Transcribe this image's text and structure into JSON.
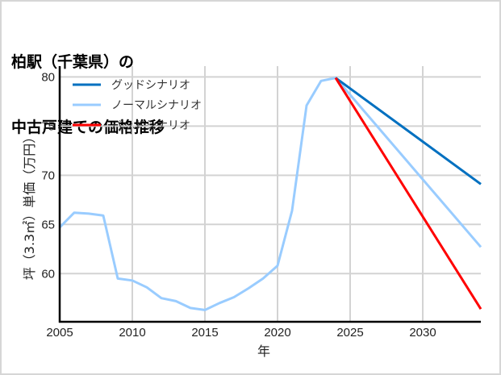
{
  "chart_data": {
    "type": "line",
    "title": "柏駅（千葉県）の\n中古戸建ての価格推移",
    "title_lines": [
      "柏駅（千葉県）の",
      "中古戸建ての価格推移"
    ],
    "xlabel": "年",
    "ylabel": "坪（3.3㎡）単価（万円）",
    "xlim": [
      2005,
      2034
    ],
    "ylim": [
      55.1,
      81.1
    ],
    "xticks": [
      2005,
      2010,
      2015,
      2020,
      2025,
      2030
    ],
    "yticks": [
      60,
      65,
      70,
      75,
      80
    ],
    "grid": true,
    "legend_position": "upper left",
    "series": [
      {
        "name": "グッドシナリオ",
        "color": "#0070c0",
        "x": [
          2024,
          2034
        ],
        "values": [
          79.9,
          69.1
        ]
      },
      {
        "name": "ノーマルシナリオ",
        "color": "#99ccff",
        "x": [
          2005,
          2006,
          2007,
          2008,
          2009,
          2010,
          2011,
          2012,
          2013,
          2014,
          2015,
          2016,
          2017,
          2018,
          2019,
          2020,
          2021,
          2022,
          2023,
          2024,
          2034
        ],
        "values": [
          64.7,
          66.2,
          66.1,
          65.9,
          59.5,
          59.3,
          58.6,
          57.5,
          57.2,
          56.5,
          56.3,
          57.0,
          57.6,
          58.5,
          59.5,
          60.8,
          66.4,
          77.1,
          79.6,
          79.9,
          62.7
        ]
      },
      {
        "name": "バッドシナリオ",
        "color": "#ff0000",
        "x": [
          2024,
          2034
        ],
        "values": [
          79.9,
          56.4
        ]
      }
    ]
  }
}
